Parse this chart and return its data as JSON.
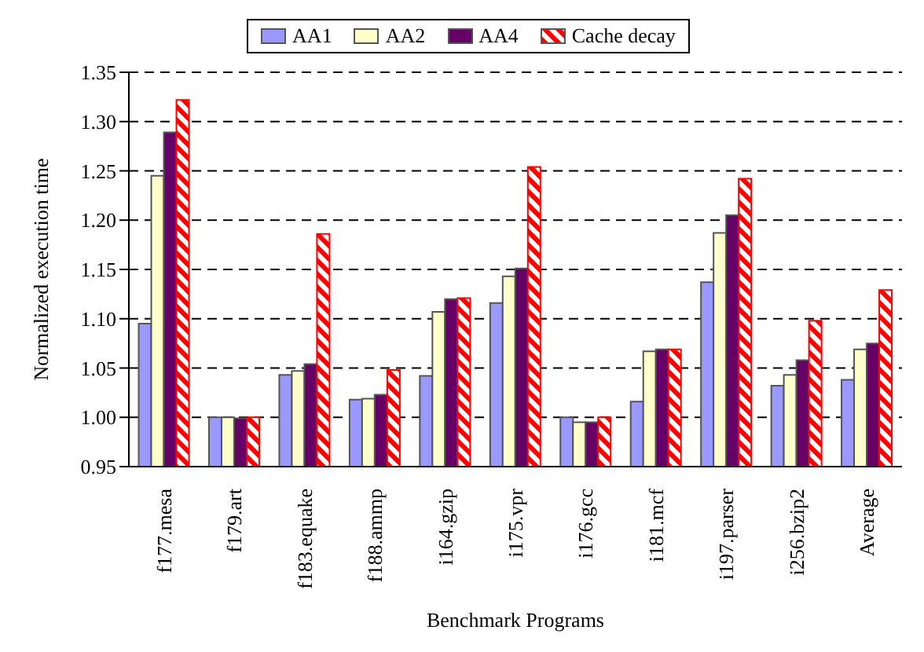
{
  "chart_data": {
    "type": "bar",
    "xlabel": "Benchmark Programs",
    "ylabel": "Normalized execution time",
    "categories": [
      "f177.mesa",
      "f179.art",
      "f183.equake",
      "f188.ammp",
      "i164.gzip",
      "i175.vpr",
      "i176.gcc",
      "i181.mcf",
      "i197.parser",
      "i256.bzip2",
      "Average"
    ],
    "series": [
      {
        "name": "AA1",
        "color": "#9999ff",
        "values": [
          1.095,
          1.0,
          1.043,
          1.018,
          1.042,
          1.116,
          1.0,
          1.016,
          1.137,
          1.032,
          1.038
        ]
      },
      {
        "name": "AA2",
        "color": "#ffffcc",
        "values": [
          1.245,
          1.0,
          1.047,
          1.019,
          1.107,
          1.143,
          0.995,
          1.067,
          1.187,
          1.043,
          1.069
        ]
      },
      {
        "name": "AA4",
        "color": "#660066",
        "values": [
          1.289,
          0.999,
          1.054,
          1.023,
          1.12,
          1.151,
          0.995,
          1.069,
          1.205,
          1.058,
          1.075
        ]
      },
      {
        "name": "Cache decay",
        "color": "#ff0000",
        "values": [
          1.322,
          1.0,
          1.186,
          1.048,
          1.121,
          1.254,
          1.0,
          1.069,
          1.242,
          1.098,
          1.129
        ]
      }
    ],
    "ylim": [
      0.95,
      1.35
    ],
    "yticks": [
      {
        "value": 0.95,
        "label": "0.95"
      },
      {
        "value": 1.0,
        "label": "1.00"
      },
      {
        "value": 1.05,
        "label": "1.05"
      },
      {
        "value": 1.1,
        "label": "1.10"
      },
      {
        "value": 1.15,
        "label": "1.15"
      },
      {
        "value": 1.2,
        "label": "1.20"
      },
      {
        "value": 1.25,
        "label": "1.25"
      },
      {
        "value": 1.3,
        "label": "1.30"
      },
      {
        "value": 1.35,
        "label": "1.35"
      }
    ],
    "grid": "y",
    "legend": "top"
  }
}
